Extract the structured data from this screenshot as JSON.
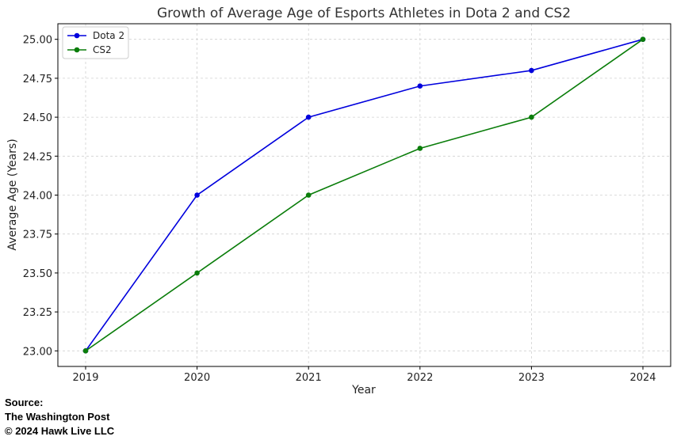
{
  "chart_data": {
    "type": "line",
    "title": "Growth of Average Age of Esports Athletes in Dota 2 and CS2",
    "xlabel": "Year",
    "ylabel": "Average Age (Years)",
    "categories": [
      "2019",
      "2020",
      "2021",
      "2022",
      "2023",
      "2024"
    ],
    "ylim": [
      22.9,
      25.1
    ],
    "yticks": [
      "23.00",
      "23.25",
      "23.50",
      "23.75",
      "24.00",
      "24.25",
      "24.50",
      "24.75",
      "25.00"
    ],
    "grid": true,
    "legend_position": "top-left",
    "series": [
      {
        "name": "Dota 2",
        "color": "#0000dd",
        "values": [
          23.0,
          24.0,
          24.5,
          24.7,
          24.8,
          25.0
        ]
      },
      {
        "name": "CS2",
        "color": "#0a7d0a",
        "values": [
          23.0,
          23.5,
          24.0,
          24.3,
          24.5,
          25.0
        ]
      }
    ]
  },
  "source": {
    "label": "Source:",
    "publisher": "The Washington Post",
    "copyright": "© 2024 Hawk Live LLC"
  }
}
